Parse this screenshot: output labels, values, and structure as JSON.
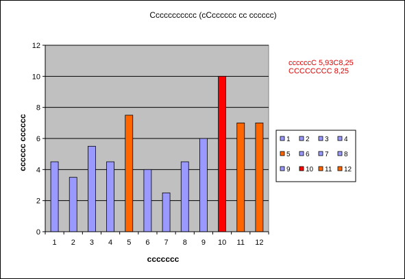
{
  "chart_data": {
    "type": "bar",
    "title": "Ссссссссссс (сСсссссс сс сссссс)",
    "xlabel": "ссссссс",
    "ylabel": "сссссс сссссс",
    "categories": [
      "1",
      "2",
      "3",
      "4",
      "5",
      "6",
      "7",
      "8",
      "9",
      "10",
      "11",
      "12"
    ],
    "values": [
      4.5,
      3.5,
      5.5,
      4.5,
      7.5,
      4,
      2.5,
      4.5,
      6,
      10,
      7,
      7
    ],
    "ylim": [
      0,
      12
    ],
    "yticks": [
      0,
      2,
      4,
      6,
      8,
      10,
      12
    ],
    "grid": true,
    "plot_background": "#c0c0c0",
    "colors": [
      "#9999ff",
      "#9999ff",
      "#9999ff",
      "#9999ff",
      "#ff6600",
      "#9999ff",
      "#9999ff",
      "#9999ff",
      "#9999ff",
      "#ff0000",
      "#ff6600",
      "#ff6600"
    ],
    "legend": {
      "placement": "right",
      "entries": [
        "1",
        "2",
        "3",
        "4",
        "5",
        "6",
        "7",
        "8",
        "9",
        "10",
        "11",
        "12"
      ]
    },
    "annotations": [
      "ссссссС 5,93С8,25",
      "СССССССС 8,25"
    ],
    "annotation_color": "#e00000"
  }
}
